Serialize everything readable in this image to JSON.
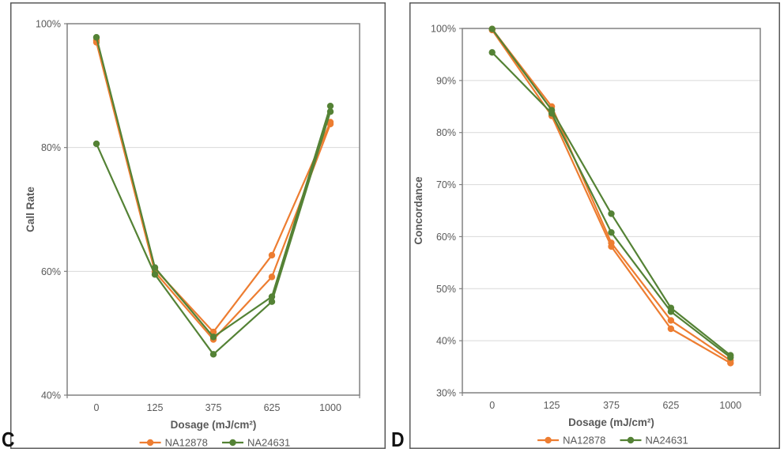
{
  "style": {
    "background": "#FFFFFF",
    "text_color": "#595959",
    "grid_color": "#D9D9D9",
    "plot_border_color": "#808080",
    "panel_border_color": "#595959",
    "orange": "#ED7D31",
    "green": "#548235"
  },
  "chart_data": [
    {
      "type": "line",
      "corner_label": "C",
      "ylabel": "Call Rate",
      "xlabel": "Dosage (mJ/cm²)",
      "categories": [
        "0",
        "125",
        "375",
        "625",
        "1000"
      ],
      "ymin": 40,
      "ymax": 100,
      "ytick_step": 20,
      "ytick_labels": [
        "40%",
        "60%",
        "80%",
        "100%"
      ],
      "grid": true,
      "legend_position": "bottom",
      "legend": [
        {
          "label": "NA12878",
          "color": "#ED7D31"
        },
        {
          "label": "NA24631",
          "color": "#548235"
        }
      ],
      "series": [
        {
          "name": "NA12878 rep1",
          "legend": "NA12878",
          "color": "#ED7D31",
          "values": [
            97.3,
            60.4,
            50.2,
            62.6,
            84.1
          ]
        },
        {
          "name": "NA12878 rep2",
          "legend": "NA12878",
          "color": "#ED7D31",
          "values": [
            97.0,
            59.9,
            49.0,
            59.1,
            83.8
          ]
        },
        {
          "name": "NA24631 rep1",
          "legend": "NA24631",
          "color": "#548235",
          "values": [
            97.8,
            60.6,
            49.4,
            55.9,
            86.7
          ]
        },
        {
          "name": "NA24631 rep2",
          "legend": "NA24631",
          "color": "#548235",
          "values": [
            80.6,
            59.5,
            46.6,
            55.1,
            85.8
          ]
        }
      ]
    },
    {
      "type": "line",
      "corner_label": "D",
      "ylabel": "Concordance",
      "xlabel": "Dosage (mJ/cm²)",
      "categories": [
        "0",
        "125",
        "375",
        "625",
        "1000"
      ],
      "ymin": 30,
      "ymax": 100,
      "ytick_step": 10,
      "ytick_labels": [
        "30%",
        "40%",
        "50%",
        "60%",
        "70%",
        "80%",
        "90%",
        "100%"
      ],
      "grid": true,
      "legend_position": "bottom",
      "legend": [
        {
          "label": "NA12878",
          "color": "#ED7D31"
        },
        {
          "label": "NA24631",
          "color": "#548235"
        }
      ],
      "series": [
        {
          "name": "NA12878 rep1",
          "legend": "NA12878",
          "color": "#ED7D31",
          "values": [
            99.9,
            85.0,
            58.8,
            43.9,
            36.2
          ]
        },
        {
          "name": "NA12878 rep2",
          "legend": "NA12878",
          "color": "#ED7D31",
          "values": [
            99.7,
            83.2,
            58.1,
            42.3,
            35.7
          ]
        },
        {
          "name": "NA24631 rep1",
          "legend": "NA24631",
          "color": "#548235",
          "values": [
            99.9,
            84.3,
            64.4,
            46.3,
            37.2
          ]
        },
        {
          "name": "NA24631 rep2",
          "legend": "NA24631",
          "color": "#548235",
          "values": [
            95.4,
            83.7,
            60.8,
            45.6,
            36.8
          ]
        }
      ]
    }
  ]
}
